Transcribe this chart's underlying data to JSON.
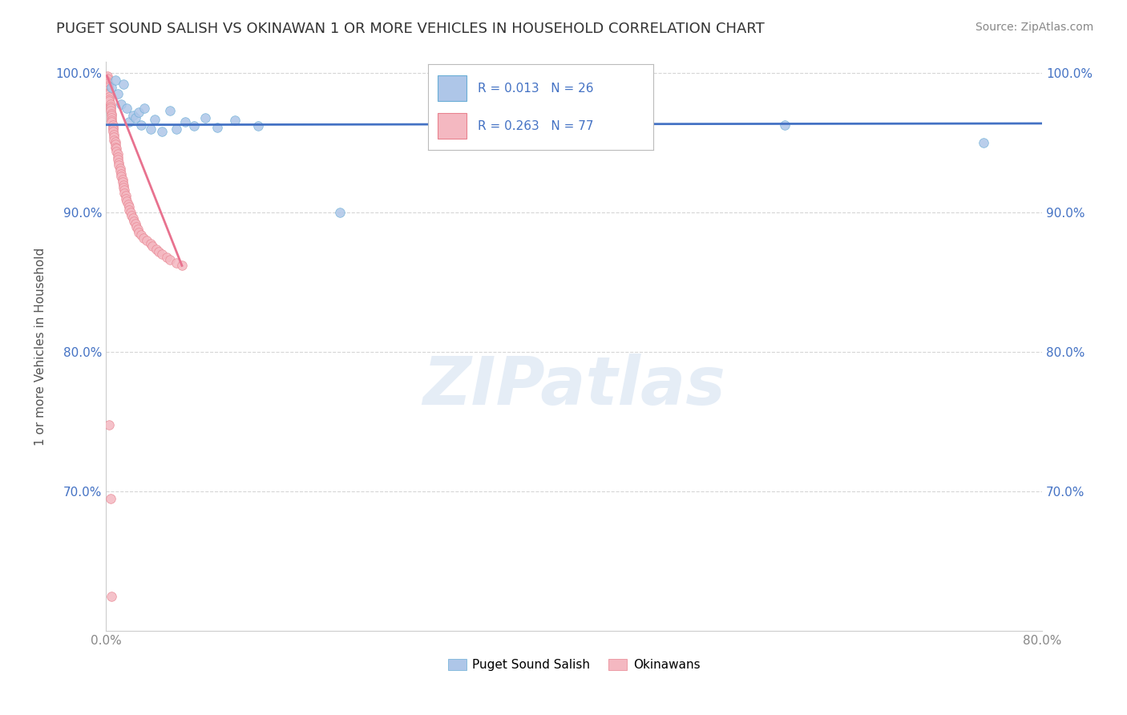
{
  "title": "PUGET SOUND SALISH VS OKINAWAN 1 OR MORE VEHICLES IN HOUSEHOLD CORRELATION CHART",
  "source": "Source: ZipAtlas.com",
  "ylabel": "1 or more Vehicles in Household",
  "xlabel": "",
  "xlim": [
    0.0,
    0.8
  ],
  "ylim": [
    0.6,
    1.008
  ],
  "yticks": [
    0.7,
    0.8,
    0.9,
    1.0
  ],
  "ytick_labels": [
    "70.0%",
    "80.0%",
    "90.0%",
    "100.0%"
  ],
  "xticks": [
    0.0,
    0.1,
    0.2,
    0.3,
    0.4,
    0.5,
    0.6,
    0.7,
    0.8
  ],
  "xtick_labels": [
    "0.0%",
    "",
    "",
    "",
    "",
    "",
    "",
    "",
    "80.0%"
  ],
  "legend_entries": [
    {
      "label": "Puget Sound Salish",
      "color": "#aec6e8",
      "R": 0.013,
      "N": 26
    },
    {
      "label": "Okinawans",
      "color": "#f4b8c1",
      "R": 0.263,
      "N": 77
    }
  ],
  "blue_scatter": {
    "x": [
      0.005,
      0.008,
      0.01,
      0.013,
      0.015,
      0.018,
      0.02,
      0.023,
      0.025,
      0.028,
      0.03,
      0.033,
      0.038,
      0.042,
      0.048,
      0.055,
      0.06,
      0.068,
      0.075,
      0.085,
      0.095,
      0.11,
      0.13,
      0.2,
      0.58,
      0.75
    ],
    "y": [
      0.99,
      0.995,
      0.985,
      0.978,
      0.992,
      0.975,
      0.965,
      0.97,
      0.968,
      0.972,
      0.963,
      0.975,
      0.96,
      0.967,
      0.958,
      0.973,
      0.96,
      0.965,
      0.962,
      0.968,
      0.961,
      0.966,
      0.962,
      0.9,
      0.963,
      0.95
    ],
    "color": "#aec6e8",
    "edgecolor": "#6aaed6",
    "size": 70
  },
  "pink_scatter": {
    "x": [
      0.001,
      0.001,
      0.001,
      0.002,
      0.002,
      0.002,
      0.002,
      0.002,
      0.003,
      0.003,
      0.003,
      0.003,
      0.004,
      0.004,
      0.004,
      0.004,
      0.005,
      0.005,
      0.005,
      0.005,
      0.005,
      0.006,
      0.006,
      0.006,
      0.006,
      0.007,
      0.007,
      0.007,
      0.008,
      0.008,
      0.008,
      0.009,
      0.009,
      0.01,
      0.01,
      0.01,
      0.011,
      0.011,
      0.012,
      0.012,
      0.013,
      0.013,
      0.014,
      0.014,
      0.015,
      0.015,
      0.016,
      0.016,
      0.017,
      0.017,
      0.018,
      0.019,
      0.02,
      0.02,
      0.021,
      0.022,
      0.023,
      0.024,
      0.025,
      0.026,
      0.027,
      0.028,
      0.03,
      0.032,
      0.035,
      0.038,
      0.04,
      0.043,
      0.045,
      0.048,
      0.052,
      0.055,
      0.06,
      0.065,
      0.003,
      0.004,
      0.005
    ],
    "y": [
      0.998,
      0.996,
      0.994,
      0.993,
      0.991,
      0.99,
      0.988,
      0.986,
      0.985,
      0.983,
      0.981,
      0.98,
      0.978,
      0.976,
      0.975,
      0.973,
      0.971,
      0.97,
      0.968,
      0.966,
      0.965,
      0.963,
      0.961,
      0.96,
      0.958,
      0.956,
      0.954,
      0.952,
      0.951,
      0.949,
      0.947,
      0.946,
      0.944,
      0.942,
      0.94,
      0.938,
      0.936,
      0.934,
      0.932,
      0.93,
      0.928,
      0.926,
      0.924,
      0.922,
      0.92,
      0.918,
      0.916,
      0.914,
      0.912,
      0.91,
      0.908,
      0.906,
      0.904,
      0.902,
      0.9,
      0.898,
      0.896,
      0.894,
      0.892,
      0.89,
      0.888,
      0.886,
      0.884,
      0.882,
      0.88,
      0.878,
      0.876,
      0.874,
      0.872,
      0.87,
      0.868,
      0.866,
      0.864,
      0.862,
      0.748,
      0.695,
      0.625
    ],
    "color": "#f4b8c1",
    "edgecolor": "#e8828f",
    "size": 70
  },
  "blue_line": {
    "x": [
      0.0,
      0.8
    ],
    "y": [
      0.963,
      0.964
    ],
    "color": "#4472c4",
    "linewidth": 2.0
  },
  "pink_line": {
    "x": [
      0.001,
      0.065
    ],
    "y": [
      0.998,
      0.862
    ],
    "color": "#e8728f",
    "linewidth": 2.0
  },
  "title_color": "#333333",
  "title_fontsize": 13,
  "axis_label_color": "#555555",
  "tick_color": "#888888",
  "grid_color": "#cccccc",
  "background_color": "#ffffff",
  "watermark": "ZIPatlas",
  "legend_R_color": "#4472c4",
  "legend_N_color": "#333333"
}
